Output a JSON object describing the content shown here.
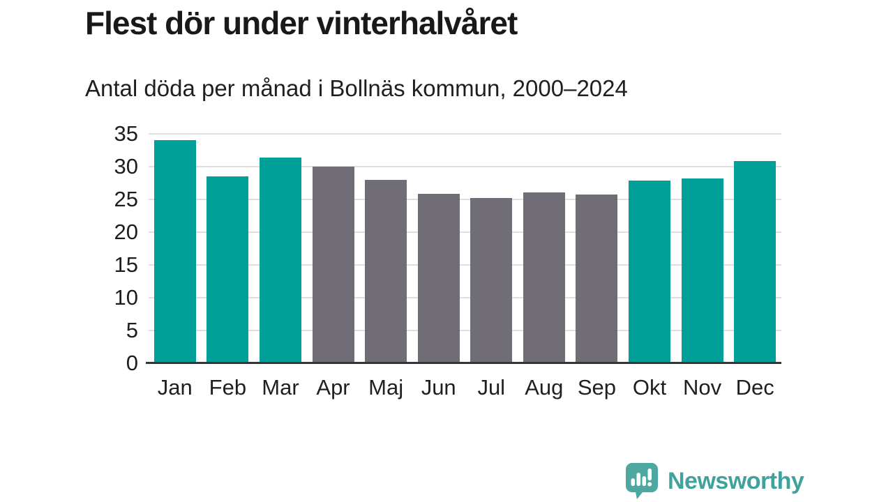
{
  "header": {
    "title": "Flest dör under vinterhalvåret",
    "subtitle": "Antal döda per månad i Bollnäs kommun, 2000–2024"
  },
  "chart_data": {
    "type": "bar",
    "title": "Flest dör under vinterhalvåret",
    "subtitle": "Antal döda per månad i Bollnäs kommun, 2000–2024",
    "categories": [
      "Jan",
      "Feb",
      "Mar",
      "Apr",
      "Maj",
      "Jun",
      "Jul",
      "Aug",
      "Sep",
      "Okt",
      "Nov",
      "Dec"
    ],
    "values": [
      34.0,
      28.5,
      31.4,
      30.0,
      28.0,
      25.9,
      25.2,
      26.1,
      25.7,
      27.9,
      28.2,
      30.8
    ],
    "bar_colors": [
      "#00a099",
      "#00a099",
      "#00a099",
      "#716d76",
      "#716d76",
      "#716d76",
      "#716d76",
      "#716d76",
      "#716d76",
      "#00a099",
      "#00a099",
      "#00a099"
    ],
    "highlight_color": "#00a099",
    "muted_color": "#716d76",
    "xlabel": "",
    "ylabel": "",
    "ylim": [
      0,
      35
    ],
    "yticks": [
      0,
      5,
      10,
      15,
      20,
      25,
      30,
      35
    ],
    "grid": true,
    "gridline_color": "#e0dede",
    "axis_color": "#383435",
    "legend": "none"
  },
  "branding": {
    "name": "Newsworthy",
    "logo_icon": "newsworthy-bar-chart-bubble-icon",
    "icon_color": "#4ea8a2",
    "text_color": "#3fa29c"
  }
}
